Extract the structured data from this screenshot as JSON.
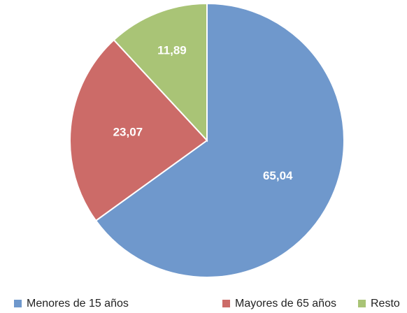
{
  "chart_data": {
    "type": "pie",
    "categories": [
      "Menores de 15 años",
      "Mayores de 65 años",
      "Resto"
    ],
    "values": [
      65.04,
      23.07,
      11.89
    ],
    "value_labels": [
      "65,04",
      "23,07",
      "11,89"
    ],
    "colors": [
      "#6f98cc",
      "#cc6b68",
      "#a9c476"
    ],
    "legend": "bottom"
  }
}
